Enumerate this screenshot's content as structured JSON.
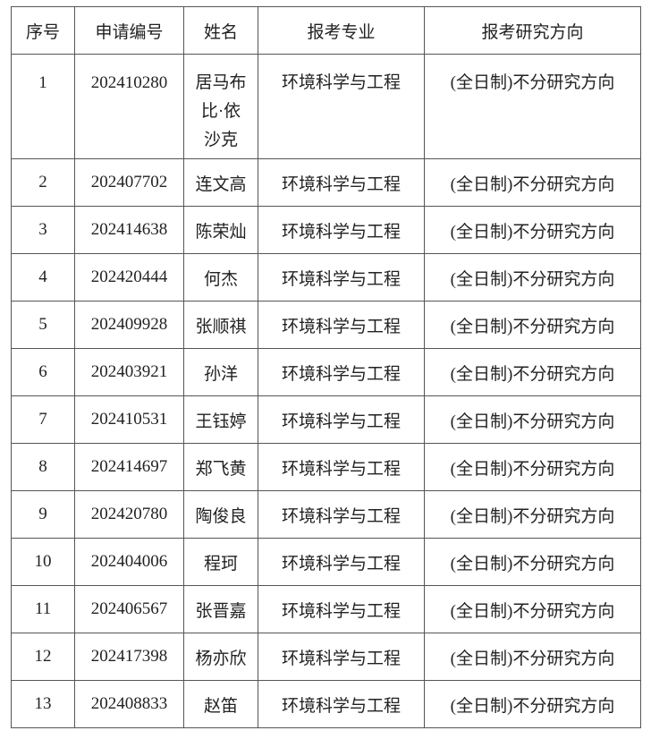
{
  "headers": [
    "序号",
    "申请编号",
    "姓名",
    "报考专业",
    "报考研究方向"
  ],
  "rows": [
    {
      "no": "1",
      "id": "202410280",
      "name": "居马布比·依沙克",
      "major": "环境科学与工程",
      "direction": "(全日制)不分研究方向"
    },
    {
      "no": "2",
      "id": "202407702",
      "name": "连文高",
      "major": "环境科学与工程",
      "direction": "(全日制)不分研究方向"
    },
    {
      "no": "3",
      "id": "202414638",
      "name": "陈荣灿",
      "major": "环境科学与工程",
      "direction": "(全日制)不分研究方向"
    },
    {
      "no": "4",
      "id": "202420444",
      "name": "何杰",
      "major": "环境科学与工程",
      "direction": "(全日制)不分研究方向"
    },
    {
      "no": "5",
      "id": "202409928",
      "name": "张顺祺",
      "major": "环境科学与工程",
      "direction": "(全日制)不分研究方向"
    },
    {
      "no": "6",
      "id": "202403921",
      "name": "孙洋",
      "major": "环境科学与工程",
      "direction": "(全日制)不分研究方向"
    },
    {
      "no": "7",
      "id": "202410531",
      "name": "王钰婷",
      "major": "环境科学与工程",
      "direction": "(全日制)不分研究方向"
    },
    {
      "no": "8",
      "id": "202414697",
      "name": "郑飞黄",
      "major": "环境科学与工程",
      "direction": "(全日制)不分研究方向"
    },
    {
      "no": "9",
      "id": "202420780",
      "name": "陶俊良",
      "major": "环境科学与工程",
      "direction": "(全日制)不分研究方向"
    },
    {
      "no": "10",
      "id": "202404006",
      "name": "程珂",
      "major": "环境科学与工程",
      "direction": "(全日制)不分研究方向"
    },
    {
      "no": "11",
      "id": "202406567",
      "name": "张晋嘉",
      "major": "环境科学与工程",
      "direction": "(全日制)不分研究方向"
    },
    {
      "no": "12",
      "id": "202417398",
      "name": "杨亦欣",
      "major": "环境科学与工程",
      "direction": "(全日制)不分研究方向"
    },
    {
      "no": "13",
      "id": "202408833",
      "name": "赵笛",
      "major": "环境科学与工程",
      "direction": "(全日制)不分研究方向"
    }
  ]
}
